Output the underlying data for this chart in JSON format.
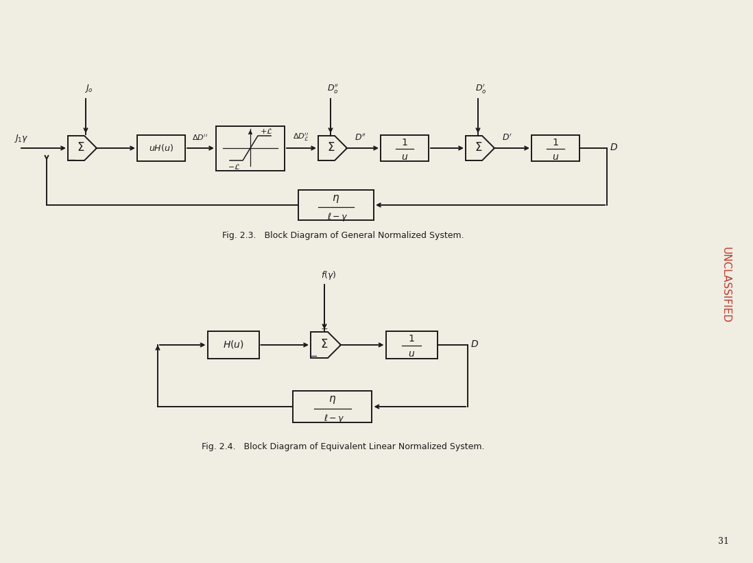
{
  "bg_color": "#f0ede3",
  "line_color": "#1a1a1a",
  "fig_caption1": "Fig. 2.3.   Block Diagram of General Normalized System.",
  "fig_caption2": "Fig. 2.4.   Block Diagram of Equivalent Linear Normalized System.",
  "unclassified_text": "UNCLASSIFIED",
  "page_num": "31"
}
